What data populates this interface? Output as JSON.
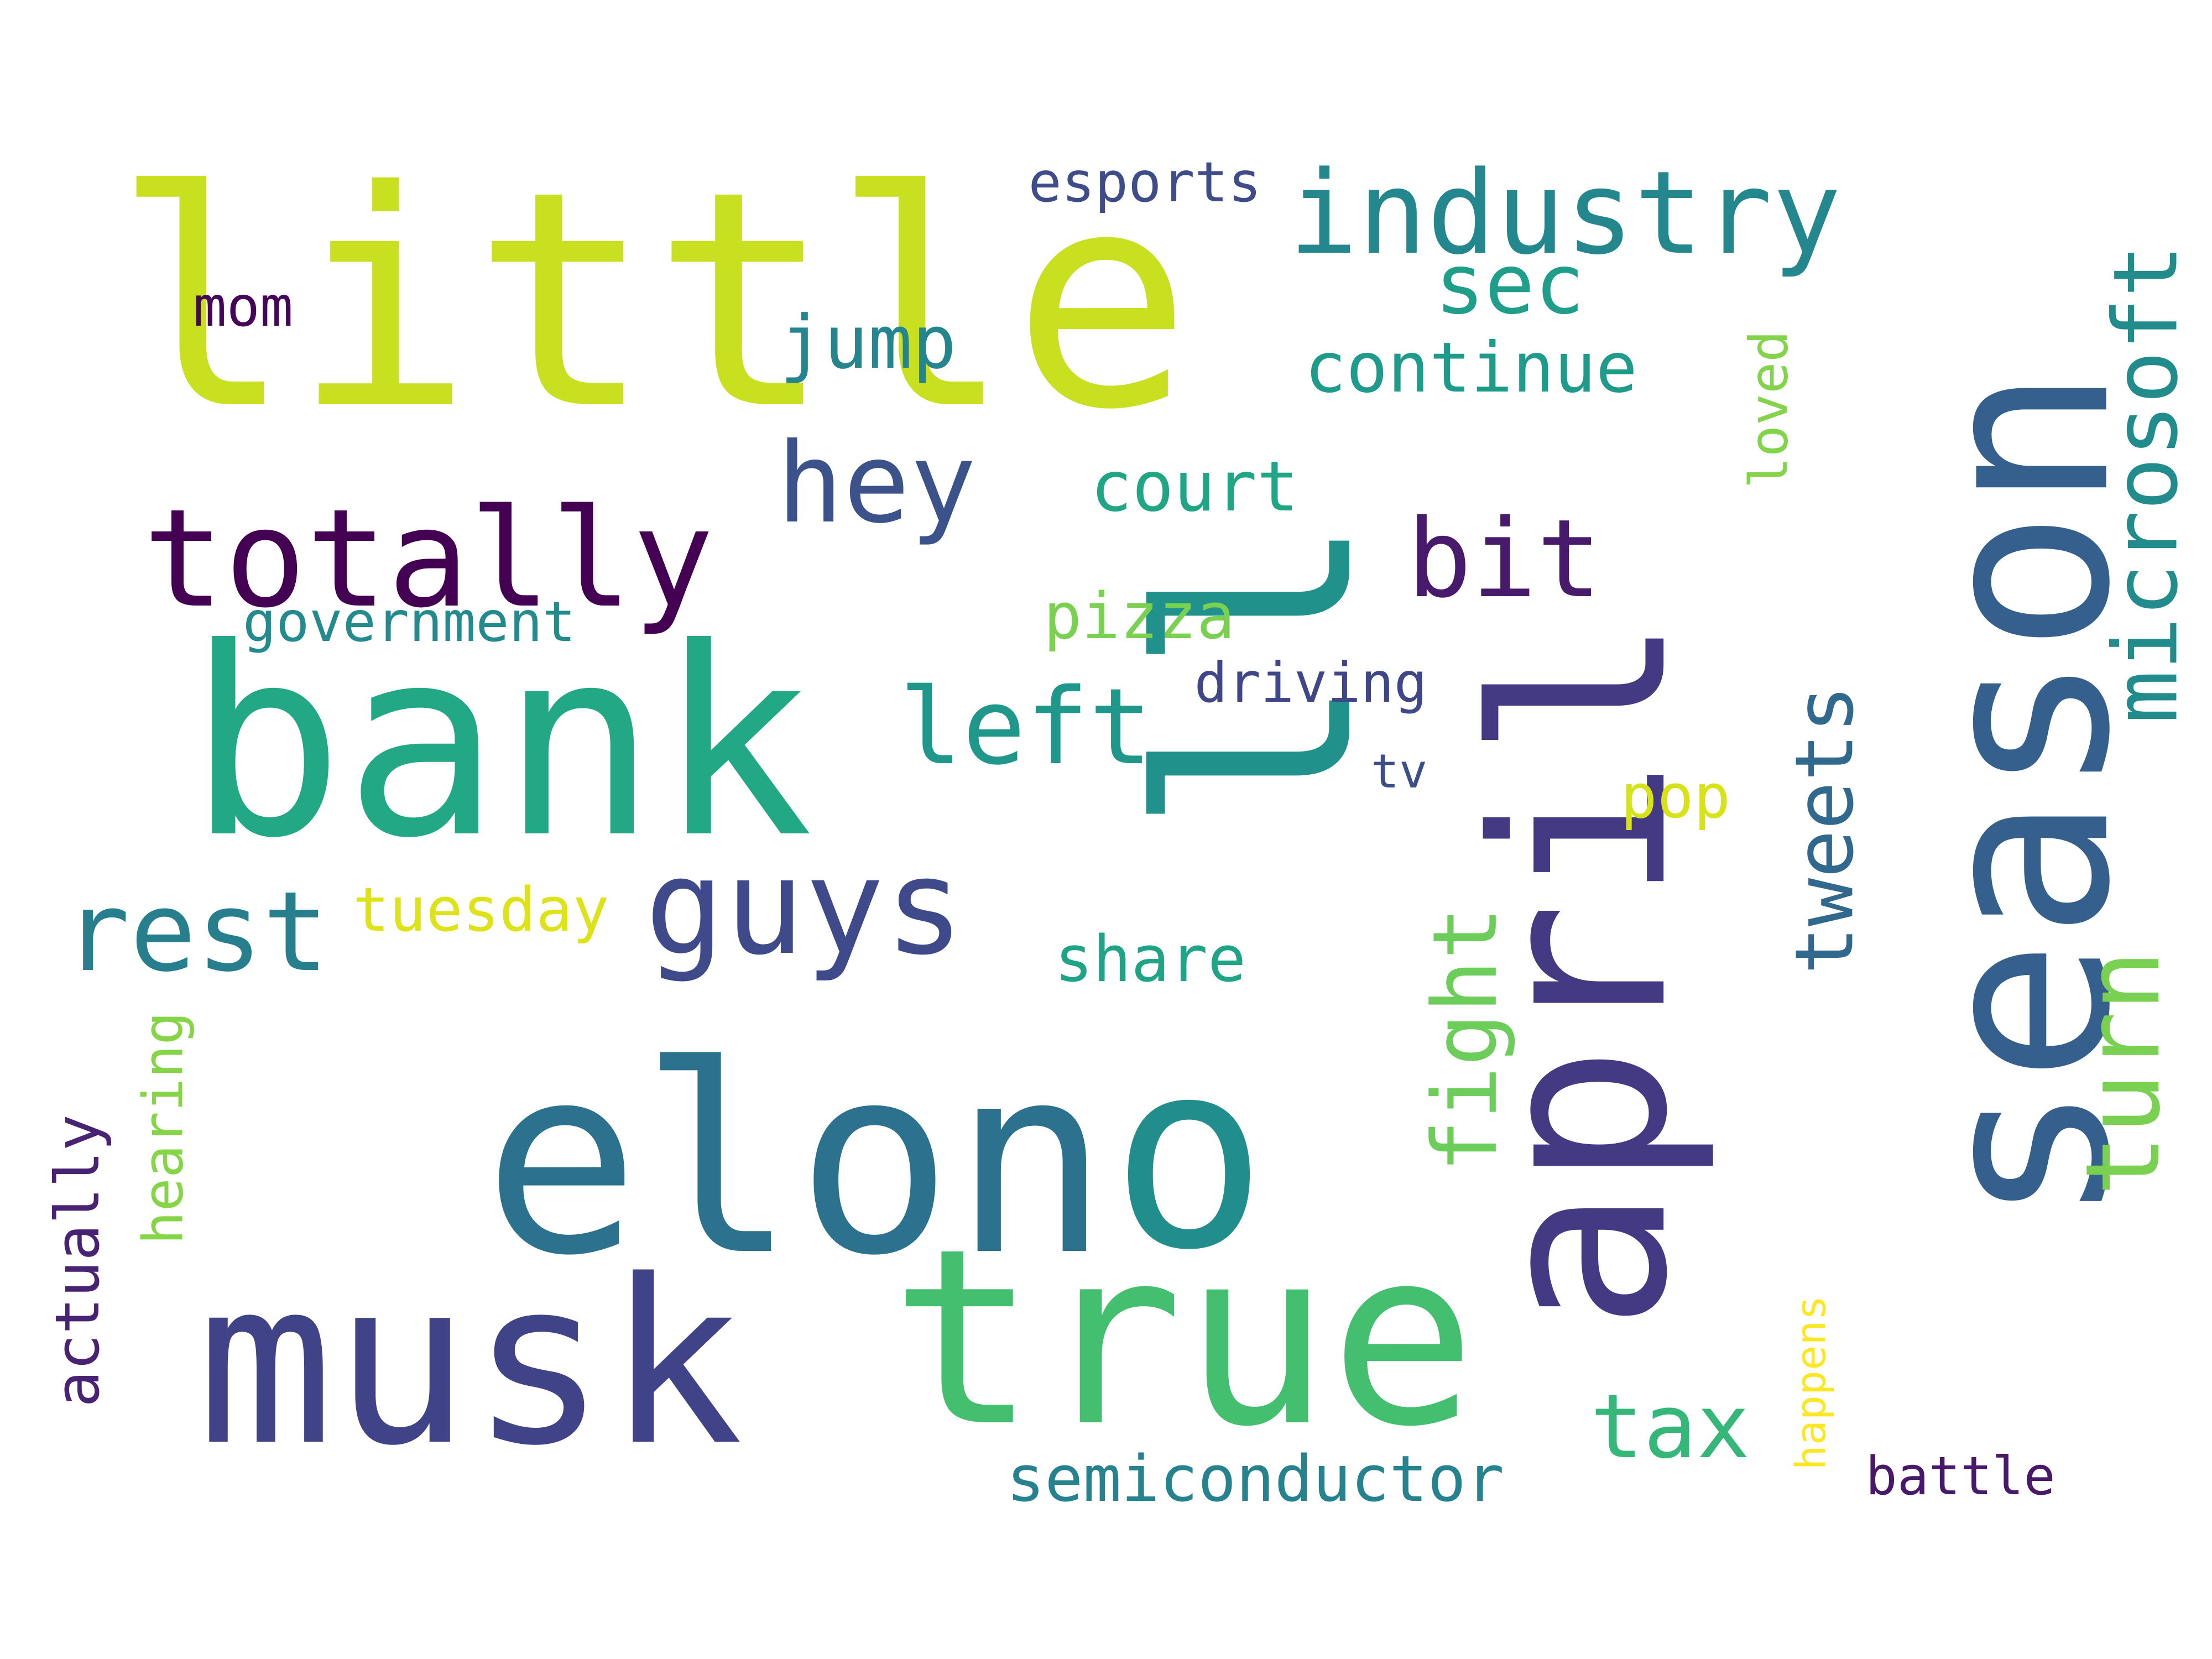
{
  "words": [
    {
      "text": "little",
      "color": "#c8e020",
      "rotated": false
    },
    {
      "text": "bank",
      "color": "#22a884",
      "rotated": false
    },
    {
      "text": "elon",
      "color": "#2c728e",
      "rotated": false
    },
    {
      "text": "musk",
      "color": "#404388",
      "rotated": false
    },
    {
      "text": "true",
      "color": "#44bf70",
      "rotated": false
    },
    {
      "text": "season",
      "color": "#355f8d",
      "rotated": true
    },
    {
      "text": "april",
      "color": "#443983",
      "rotated": true
    },
    {
      "text": "o",
      "color": "#228d8d",
      "rotated": false
    },
    {
      "text": "ll",
      "color": "#21918c",
      "rotated": true
    },
    {
      "text": "totally",
      "color": "#440154",
      "rotated": false
    },
    {
      "text": "industry",
      "color": "#24878e",
      "rotated": false
    },
    {
      "text": "microsoft",
      "color": "#228c8d",
      "rotated": true
    },
    {
      "text": "turn",
      "color": "#7ad151",
      "rotated": true
    },
    {
      "text": "guys",
      "color": "#3e4a89",
      "rotated": false
    },
    {
      "text": "rest",
      "color": "#277f8e",
      "rotated": false
    },
    {
      "text": "left",
      "color": "#1f988b",
      "rotated": false
    },
    {
      "text": "bit",
      "color": "#481a6c",
      "rotated": false
    },
    {
      "text": "hey",
      "color": "#3b528b",
      "rotated": false
    },
    {
      "text": "tweets",
      "color": "#31688e",
      "rotated": true
    },
    {
      "text": "fight",
      "color": "#6ccd5a",
      "rotated": true
    },
    {
      "text": "sec",
      "color": "#1f9e89",
      "rotated": false
    },
    {
      "text": "tax",
      "color": "#35b779",
      "rotated": false
    },
    {
      "text": "jump",
      "color": "#25858e",
      "rotated": false
    },
    {
      "text": "continue",
      "color": "#1e9b8a",
      "rotated": false
    },
    {
      "text": "court",
      "color": "#21a685",
      "rotated": false
    },
    {
      "text": "pizza",
      "color": "#7ad151",
      "rotated": false
    },
    {
      "text": "loved",
      "color": "#84d44b",
      "rotated": true
    },
    {
      "text": "share",
      "color": "#20a486",
      "rotated": false
    },
    {
      "text": "tuesday",
      "color": "#dde318",
      "rotated": false
    },
    {
      "text": "semiconductor",
      "color": "#26828e",
      "rotated": false
    },
    {
      "text": "pop",
      "color": "#d8e219",
      "rotated": false
    },
    {
      "text": "government",
      "color": "#238a8d",
      "rotated": false
    },
    {
      "text": "actually",
      "color": "#482374",
      "rotated": true
    },
    {
      "text": "hearing",
      "color": "#86d549",
      "rotated": true
    },
    {
      "text": "happens",
      "color": "#fde725",
      "rotated": true
    },
    {
      "text": "esports",
      "color": "#3e4c8a",
      "rotated": false
    },
    {
      "text": "driving",
      "color": "#3f4788",
      "rotated": false
    },
    {
      "text": "mom",
      "color": "#450559",
      "rotated": false
    },
    {
      "text": "battle",
      "color": "#48186a",
      "rotated": false
    },
    {
      "text": "tv",
      "color": "#3c4f8a",
      "rotated": false
    }
  ]
}
